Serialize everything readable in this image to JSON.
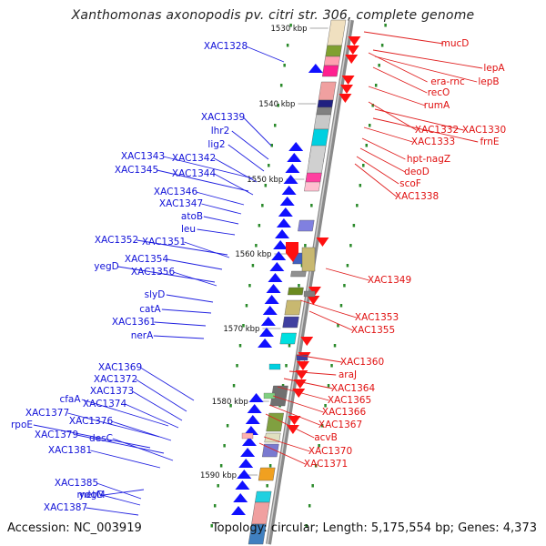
{
  "title": "Xanthomonas axonopodis pv. citri str. 306, complete genome",
  "footer": {
    "accession": "Accession: NC_003919",
    "topology": "Topology: circular; Length: 5,175,554 bp; Genes: 4,373"
  },
  "colors": {
    "left_labels": "#1010d8",
    "right_labels": "#e01010",
    "leader_left": "#2020e0",
    "leader_right": "#e02020"
  },
  "kbp_markers": [
    "1530 kbp",
    "1540 kbp",
    "1550 kbp",
    "1560 kbp",
    "1570 kbp",
    "1580 kbp",
    "1590 kbp"
  ],
  "left_labels": [
    "XAC1328",
    "XAC1339",
    "lhr2",
    "lig2",
    "XAC1343",
    "XAC1342",
    "XAC1345",
    "XAC1344",
    "XAC1346",
    "XAC1347",
    "atoB",
    "leu",
    "XAC1352",
    "XAC1351",
    "XAC1354",
    "yegD",
    "XAC1356",
    "slyD",
    "catA",
    "XAC1361",
    "nerA",
    "XAC1369",
    "XAC1372",
    "XAC1373",
    "cfaA",
    "XAC1374",
    "XAC1377",
    "XAC1376",
    "rpoE",
    "XAC1379",
    "desC",
    "XAC1381",
    "ydgM",
    "XAC1385",
    "metG",
    "XAC1387"
  ],
  "right_labels": [
    "mucD",
    "lepA",
    "era-rnc",
    "lepB",
    "recO",
    "rumA",
    "XAC1332",
    "XAC1330",
    "frnE",
    "XAC1333",
    "hpt-nagZ",
    "deoD",
    "scoF",
    "XAC1338",
    "XAC1349",
    "XAC1353",
    "XAC1355",
    "XAC1360",
    "araJ",
    "XAC1364",
    "XAC1365",
    "XAC1366",
    "XAC1367",
    "acvB",
    "XAC1370",
    "XAC1371"
  ]
}
